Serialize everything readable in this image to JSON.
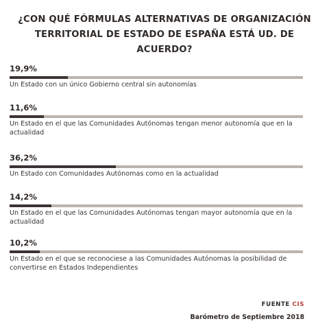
{
  "title": "¿CON QUÉ FÓRMULAS ALTERNATIVAS DE ORGANIZACIÓN TERRITORIAL DE ESTADO DE ESPAÑA ESTÁ UD. DE ACUERDO?",
  "colors": {
    "bar_fill": "#3b3432",
    "bar_track": "#bdb3ad",
    "source_accent": "#b6403b"
  },
  "chart_data": {
    "type": "bar",
    "orientation": "horizontal",
    "title": "¿CON QUÉ FÓRMULAS ALTERNATIVAS DE ORGANIZACIÓN TERRITORIAL DE ESTADO DE ESPAÑA ESTÁ UD. DE ACUERDO?",
    "xlim": [
      0,
      100
    ],
    "grid": false,
    "categories": [
      "Un Estado con un único Gobierno central sin autonomías",
      "Un Estado en el que las Comunidades Autónomas tengan menor autonomía que en la actualidad",
      "Un Estado con Comunidades Autónomas como en la actualidad",
      "Un Estado en el que las Comunidades Autónomas tengan mayor autonomía que en la actualidad",
      "Un Estado en el que se reconociese a las Comunidades Autónomas la posibilidad de convertirse en Estados Independientes"
    ],
    "values": [
      19.9,
      11.6,
      36.2,
      14.2,
      10.2
    ],
    "value_labels": [
      "19,9%",
      "11,6%",
      "36,2%",
      "14,2%",
      "10,2%"
    ]
  },
  "footer": {
    "source_prefix": "FUENTE",
    "source_name": "CIS",
    "subtitle": "Barómetro de Septiembre 2018"
  }
}
